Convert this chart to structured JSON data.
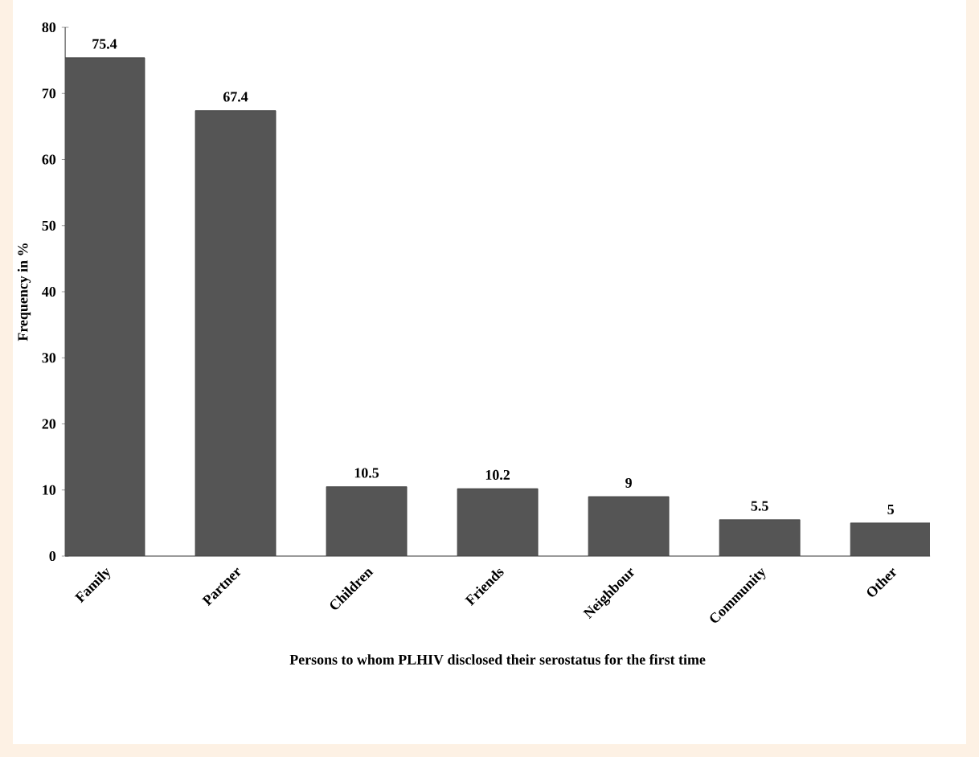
{
  "chart_data": {
    "type": "bar",
    "xlabel": "Persons to whom PLHIV disclosed their serostatus for the first time",
    "ylabel": "Frequency in %",
    "categories": [
      "Family",
      "Partner",
      "Children",
      "Friends",
      "Neighbour",
      "Community",
      "Other"
    ],
    "values": [
      75.4,
      67.4,
      10.5,
      10.2,
      9,
      5.5,
      5
    ],
    "color": "#555555",
    "data_labels": true,
    "grid": false,
    "ylim": [
      0,
      80
    ],
    "yticks": [
      0,
      10,
      20,
      30,
      40,
      50,
      60,
      70,
      80
    ]
  }
}
